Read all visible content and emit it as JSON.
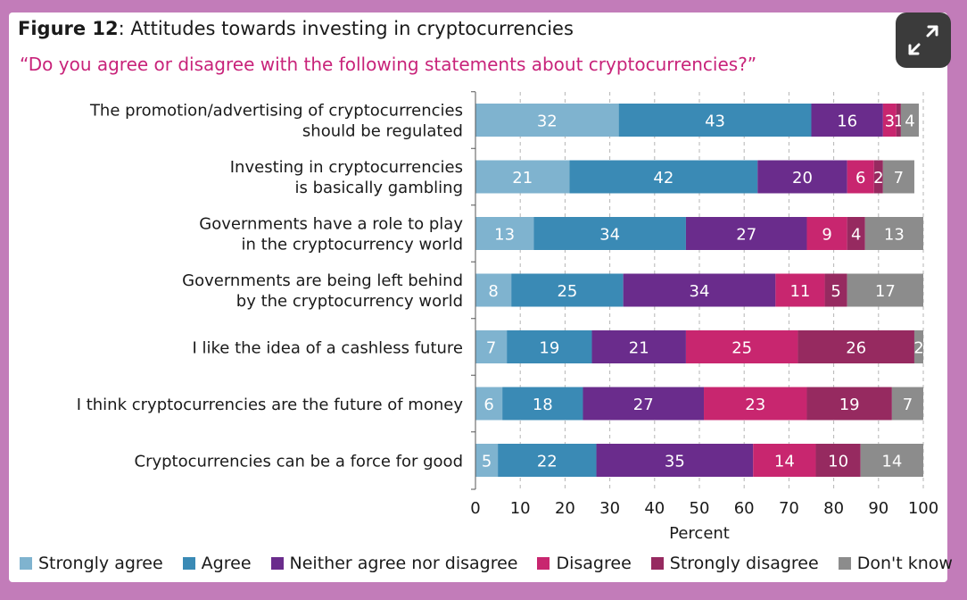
{
  "header": {
    "figure_label": "Figure 12",
    "figure_title": ": Attitudes towards investing in cryptocurrencies",
    "subtitle": "“Do you agree or disagree with the following statements about cryptocurrencies?”"
  },
  "icons": {
    "expand": "expand-arrows-icon"
  },
  "chart_data": {
    "type": "bar",
    "orientation": "horizontal",
    "stacked": true,
    "title": "Attitudes towards investing in cryptocurrencies",
    "xlabel": "Percent",
    "ylabel": "",
    "xlim": [
      0,
      100
    ],
    "xticks": [
      0,
      10,
      20,
      30,
      40,
      50,
      60,
      70,
      80,
      90,
      100
    ],
    "legend_position": "bottom",
    "categories": [
      [
        "The promotion/advertising of cryptocurrencies",
        "should be regulated"
      ],
      [
        "Investing in cryptocurrencies",
        "is basically gambling"
      ],
      [
        "Governments have a role to play",
        "in the cryptocurrency world"
      ],
      [
        "Governments are being left behind",
        "by the cryptocurrency world"
      ],
      [
        "I like the idea of a cashless future"
      ],
      [
        "I think cryptocurrencies are the future of money"
      ],
      [
        "Cryptocurrencies can be a force for good"
      ]
    ],
    "series": [
      {
        "name": "Strongly agree",
        "color": "#7fb3cf",
        "values": [
          32,
          21,
          13,
          8,
          7,
          6,
          5
        ]
      },
      {
        "name": "Agree",
        "color": "#3a8ab5",
        "values": [
          43,
          42,
          34,
          25,
          19,
          18,
          22
        ]
      },
      {
        "name": "Neither agree nor disagree",
        "color": "#6a2c8c",
        "values": [
          16,
          20,
          27,
          34,
          21,
          27,
          35
        ]
      },
      {
        "name": "Disagree",
        "color": "#c8266f",
        "values": [
          3,
          6,
          9,
          11,
          25,
          23,
          14
        ]
      },
      {
        "name": "Strongly disagree",
        "color": "#962a60",
        "values": [
          1,
          2,
          4,
          5,
          26,
          19,
          10
        ]
      },
      {
        "name": "Don't know",
        "color": "#8c8c8c",
        "values": [
          4,
          7,
          13,
          17,
          2,
          7,
          14
        ]
      }
    ]
  }
}
